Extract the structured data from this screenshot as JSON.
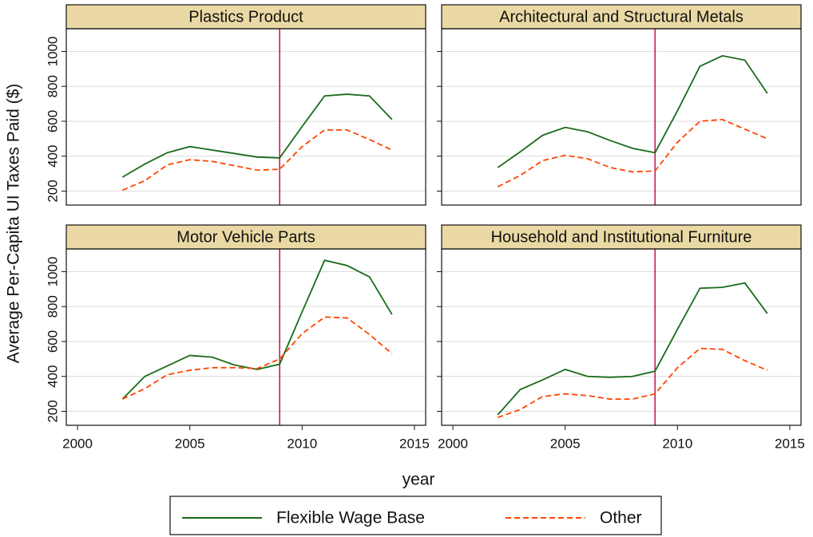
{
  "ylabel": "Average Per-Capita UI Taxes Paid ($)",
  "xlabel": "year",
  "chart_data": [
    {
      "type": "line",
      "title": "Plastics Product",
      "vline": 2009,
      "vline_color": "#c0124f",
      "grid": true,
      "x": [
        2002,
        2003,
        2004,
        2005,
        2006,
        2007,
        2008,
        2009,
        2010,
        2011,
        2012,
        2013,
        2014
      ],
      "xlim": [
        1999.5,
        2015.5
      ],
      "xticks": [
        2000,
        2005,
        2010,
        2015
      ],
      "ylim": [
        120,
        1130
      ],
      "yticks": [
        200,
        400,
        600,
        800,
        1000
      ],
      "series": [
        {
          "name": "Flexible Wage Base",
          "color": "#1a6b1a",
          "dashed": false,
          "values": [
            280,
            355,
            420,
            455,
            435,
            415,
            395,
            390,
            570,
            745,
            755,
            745,
            610
          ]
        },
        {
          "name": "Other",
          "color": "#ff4500",
          "dashed": true,
          "values": [
            205,
            260,
            350,
            380,
            370,
            345,
            320,
            325,
            455,
            550,
            550,
            495,
            435
          ]
        }
      ]
    },
    {
      "type": "line",
      "title": "Architectural and Structural Metals",
      "vline": 2009,
      "vline_color": "#c0124f",
      "grid": true,
      "x": [
        2002,
        2003,
        2004,
        2005,
        2006,
        2007,
        2008,
        2009,
        2010,
        2011,
        2012,
        2013,
        2014
      ],
      "xlim": [
        1999.5,
        2015.5
      ],
      "xticks": [
        2000,
        2005,
        2010,
        2015
      ],
      "ylim": [
        120,
        1130
      ],
      "yticks": [
        200,
        400,
        600,
        800,
        1000
      ],
      "series": [
        {
          "name": "Flexible Wage Base",
          "color": "#1a6b1a",
          "dashed": false,
          "values": [
            335,
            425,
            520,
            565,
            540,
            490,
            445,
            420,
            660,
            915,
            975,
            950,
            760
          ]
        },
        {
          "name": "Other",
          "color": "#ff4500",
          "dashed": true,
          "values": [
            225,
            290,
            375,
            405,
            385,
            335,
            310,
            315,
            480,
            600,
            610,
            555,
            500
          ]
        }
      ]
    },
    {
      "type": "line",
      "title": "Motor Vehicle Parts",
      "vline": 2009,
      "vline_color": "#c0124f",
      "grid": true,
      "x": [
        2002,
        2003,
        2004,
        2005,
        2006,
        2007,
        2008,
        2009,
        2010,
        2011,
        2012,
        2013,
        2014
      ],
      "xlim": [
        1999.5,
        2015.5
      ],
      "xticks": [
        2000,
        2005,
        2010,
        2015
      ],
      "ylim": [
        120,
        1130
      ],
      "yticks": [
        200,
        400,
        600,
        800,
        1000
      ],
      "series": [
        {
          "name": "Flexible Wage Base",
          "color": "#1a6b1a",
          "dashed": false,
          "values": [
            270,
            400,
            460,
            520,
            510,
            465,
            440,
            470,
            770,
            1065,
            1035,
            970,
            755
          ]
        },
        {
          "name": "Other",
          "color": "#ff4500",
          "dashed": true,
          "values": [
            270,
            330,
            410,
            435,
            450,
            450,
            445,
            500,
            645,
            740,
            735,
            640,
            530
          ]
        }
      ]
    },
    {
      "type": "line",
      "title": "Household and Institutional Furniture",
      "vline": 2009,
      "vline_color": "#c0124f",
      "grid": true,
      "x": [
        2002,
        2003,
        2004,
        2005,
        2006,
        2007,
        2008,
        2009,
        2010,
        2011,
        2012,
        2013,
        2014
      ],
      "xlim": [
        1999.5,
        2015.5
      ],
      "xticks": [
        2000,
        2005,
        2010,
        2015
      ],
      "ylim": [
        120,
        1130
      ],
      "yticks": [
        200,
        400,
        600,
        800,
        1000
      ],
      "series": [
        {
          "name": "Flexible Wage Base",
          "color": "#1a6b1a",
          "dashed": false,
          "values": [
            180,
            325,
            380,
            440,
            400,
            395,
            400,
            430,
            670,
            905,
            910,
            935,
            760
          ]
        },
        {
          "name": "Other",
          "color": "#ff4500",
          "dashed": true,
          "values": [
            165,
            210,
            285,
            300,
            290,
            270,
            270,
            300,
            450,
            560,
            555,
            490,
            435
          ]
        }
      ]
    }
  ]
}
